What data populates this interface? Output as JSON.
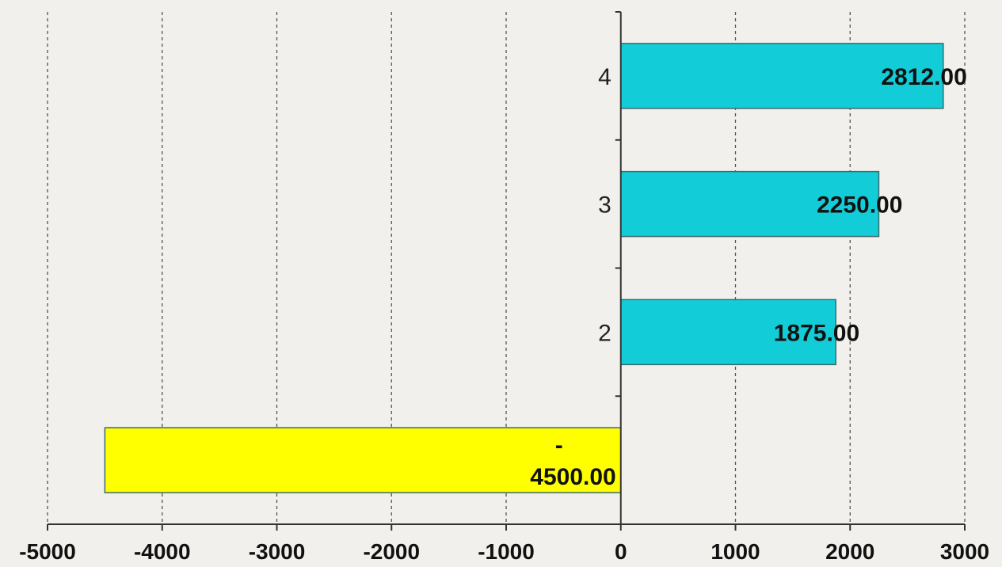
{
  "chart_data": {
    "type": "bar",
    "orientation": "horizontal",
    "categories": [
      "",
      "2",
      "3",
      "4"
    ],
    "values": [
      -4500,
      1875,
      2250,
      2812
    ],
    "data_labels": [
      [
        "-",
        "4500.00"
      ],
      [
        "1875.00"
      ],
      [
        "2250.00"
      ],
      [
        "2812.00"
      ]
    ],
    "xlim": [
      -5000,
      3000
    ],
    "x_ticks": [
      "-5000",
      "-4000",
      "-3000",
      "-2000",
      "-1000",
      "0",
      "1000",
      "2000",
      "3000"
    ],
    "grid": "vertical-dashed",
    "legend": "none",
    "colors": {
      "positive": "#12cdd8",
      "negative": "#ffff00",
      "bar_border": "#3a6b6b",
      "grid": "#555555",
      "axis": "#333333",
      "background": "#f1f0ec"
    }
  }
}
